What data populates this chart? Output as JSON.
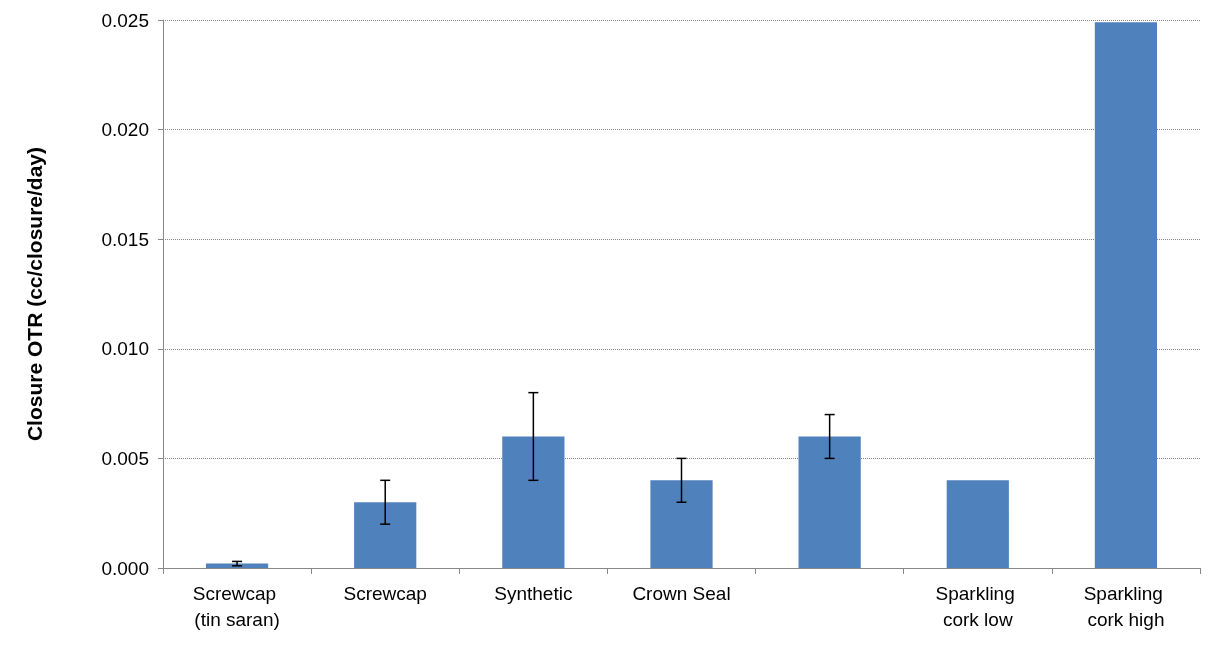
{
  "chart_data": {
    "type": "bar",
    "ylabel": "Closure OTR (cc/closure/day)",
    "categories": [
      "Screwcap (tin saran)",
      "Screwcap",
      "Synthetic",
      "Crown Seal",
      null,
      "Sparkling cork low",
      "Sparkling cork high"
    ],
    "values": [
      0.0002,
      0.003,
      0.006,
      0.004,
      0.006,
      0.004,
      0.0249
    ],
    "errors": [
      0.0001,
      0.001,
      0.002,
      0.001,
      0.001,
      null,
      null
    ],
    "color": "#4f81bd",
    "ylim": [
      0,
      0.025
    ],
    "yticks": [
      {
        "value": 0,
        "label": "0.000"
      },
      {
        "value": 0.005,
        "label": "0.005"
      },
      {
        "value": 0.01,
        "label": "0.010"
      },
      {
        "value": 0.015,
        "label": "0.015"
      },
      {
        "value": 0.02,
        "label": "0.020"
      },
      {
        "value": 0.025,
        "label": "0.025"
      }
    ],
    "grid": "y"
  }
}
